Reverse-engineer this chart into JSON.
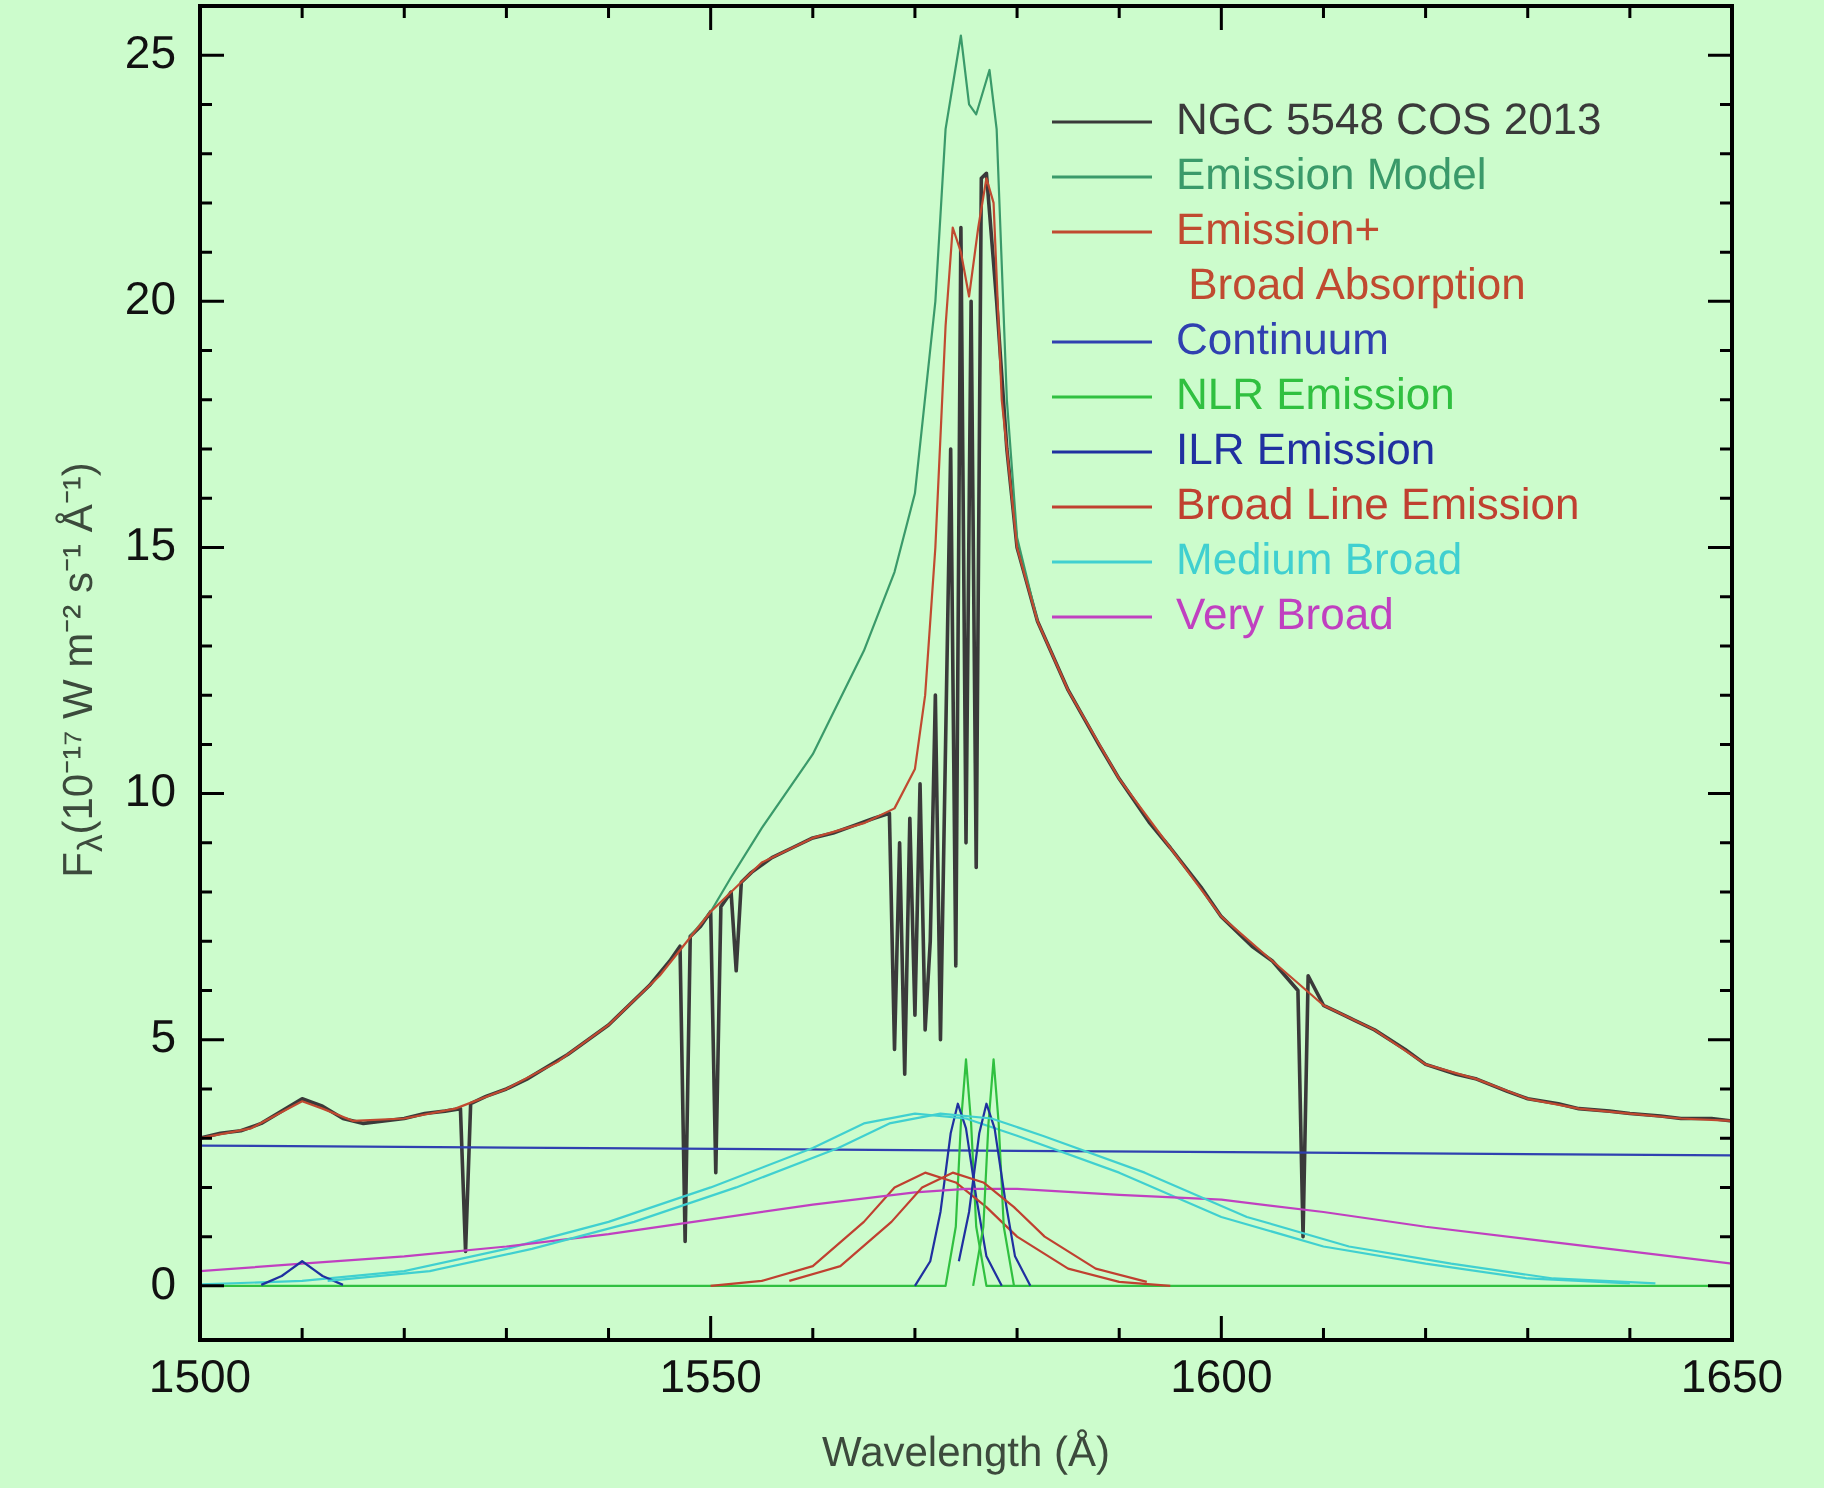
{
  "chart_data": {
    "type": "line",
    "xlabel": "Wavelength (Å)",
    "ylabel": "F$_{λ}$(10⁻¹⁷ W m⁻² s⁻¹ Å⁻¹)",
    "xlim": [
      1500,
      1650
    ],
    "ylim": [
      -1.1,
      26
    ],
    "xticks": [
      1500,
      {
        "value": 1510,
        "label": null
      },
      {
        "value": 1520,
        "label": null
      },
      {
        "value": 1530,
        "label": null
      },
      {
        "value": 1540,
        "label": null
      },
      1550,
      {
        "value": 1560,
        "label": null
      },
      {
        "value": 1570,
        "label": null
      },
      {
        "value": 1580,
        "label": null
      },
      {
        "value": 1590,
        "label": null
      },
      1600,
      {
        "value": 1610,
        "label": null
      },
      {
        "value": 1620,
        "label": null
      },
      {
        "value": 1630,
        "label": null
      },
      {
        "value": 1640,
        "label": null
      },
      1650
    ],
    "yticks": [
      0,
      {
        "value": 1,
        "label": null
      },
      {
        "value": 2,
        "label": null
      },
      {
        "value": 3,
        "label": null
      },
      {
        "value": 4,
        "label": null
      },
      5,
      {
        "value": 6,
        "label": null
      },
      {
        "value": 7,
        "label": null
      },
      {
        "value": 8,
        "label": null
      },
      {
        "value": 9,
        "label": null
      },
      10,
      {
        "value": 11,
        "label": null
      },
      {
        "value": 12,
        "label": null
      },
      {
        "value": 13,
        "label": null
      },
      {
        "value": 14,
        "label": null
      },
      15,
      {
        "value": 16,
        "label": null
      },
      {
        "value": 17,
        "label": null
      },
      {
        "value": 18,
        "label": null
      },
      {
        "value": 19,
        "label": null
      },
      20,
      {
        "value": 21,
        "label": null
      },
      {
        "value": 22,
        "label": null
      },
      {
        "value": 23,
        "label": null
      },
      {
        "value": 24,
        "label": null
      },
      25,
      {
        "value": 26,
        "label": null
      }
    ],
    "grid": false,
    "legend": "top right",
    "marker": "none",
    "line_style": "solid",
    "series": [
      {
        "name": "NGC 5548 COS 2013",
        "color": "#3a3a3a",
        "x": [
          1500,
          1502,
          1504,
          1506,
          1508,
          1510,
          1512,
          1514,
          1516,
          1518,
          1520,
          1522,
          1524,
          1525.5,
          1526,
          1526.5,
          1528,
          1530,
          1532,
          1534,
          1536,
          1538,
          1540,
          1542,
          1544,
          1546,
          1547,
          1547.5,
          1548,
          1549,
          1550,
          1550.5,
          1551,
          1552,
          1552.5,
          1553,
          1554,
          1556,
          1558,
          1560,
          1562,
          1564,
          1566,
          1567.5,
          1568,
          1568.5,
          1569,
          1569.5,
          1570,
          1570.5,
          1571,
          1571.5,
          1572,
          1572.5,
          1573,
          1573.5,
          1574,
          1574.5,
          1575,
          1575.5,
          1576,
          1576.5,
          1577,
          1578,
          1579,
          1580,
          1582,
          1585,
          1588,
          1590,
          1593,
          1595,
          1598,
          1600,
          1603,
          1605,
          1607.5,
          1608,
          1608.5,
          1610,
          1613,
          1615,
          1618,
          1620,
          1623,
          1625,
          1628,
          1630,
          1633,
          1635,
          1638,
          1640,
          1643,
          1645,
          1648,
          1650
        ],
        "values": [
          3.0,
          3.1,
          3.15,
          3.3,
          3.55,
          3.8,
          3.65,
          3.4,
          3.3,
          3.35,
          3.4,
          3.5,
          3.55,
          3.6,
          0.7,
          3.7,
          3.85,
          4.0,
          4.2,
          4.45,
          4.7,
          5.0,
          5.3,
          5.7,
          6.1,
          6.6,
          6.9,
          0.9,
          7.1,
          7.3,
          7.6,
          2.3,
          7.7,
          8.0,
          6.4,
          8.2,
          8.4,
          8.7,
          8.9,
          9.1,
          9.2,
          9.35,
          9.5,
          9.6,
          4.8,
          9.0,
          4.3,
          9.5,
          5.5,
          10.2,
          5.2,
          7.0,
          12.0,
          5.0,
          11.0,
          17.0,
          6.5,
          21.5,
          9.0,
          20.0,
          8.5,
          22.5,
          22.6,
          20.0,
          17.0,
          15.0,
          13.5,
          12.1,
          11.0,
          10.3,
          9.4,
          8.9,
          8.1,
          7.5,
          6.9,
          6.6,
          6.0,
          1.0,
          6.3,
          5.7,
          5.4,
          5.2,
          4.8,
          4.5,
          4.3,
          4.2,
          3.95,
          3.8,
          3.7,
          3.6,
          3.55,
          3.5,
          3.45,
          3.4,
          3.4,
          3.35
        ]
      },
      {
        "name": "Emission Model",
        "color": "#3a9a6a",
        "x": [
          1548,
          1550,
          1552,
          1555,
          1560,
          1565,
          1568,
          1570,
          1572,
          1573,
          1574.5,
          1575.3,
          1576,
          1577.3,
          1578,
          1579,
          1580,
          1582
        ],
        "values": [
          7.1,
          7.6,
          8.3,
          9.3,
          10.8,
          12.9,
          14.5,
          16.1,
          20.0,
          23.5,
          25.4,
          24.0,
          23.8,
          24.7,
          23.5,
          18.0,
          15.2,
          13.5
        ]
      },
      {
        "name": "Emission+\n Broad Absorption",
        "color": "#c04a30",
        "x": [
          1500,
          1505,
          1510,
          1512,
          1515,
          1520,
          1525,
          1530,
          1535,
          1540,
          1545,
          1550,
          1555,
          1560,
          1565,
          1568,
          1570,
          1571,
          1572,
          1573,
          1573.7,
          1574.5,
          1575.3,
          1576.2,
          1577,
          1577.7,
          1578.5,
          1580,
          1582,
          1585,
          1590,
          1595,
          1600,
          1605,
          1610,
          1615,
          1620,
          1625,
          1630,
          1635,
          1640,
          1645,
          1650
        ],
        "values": [
          3.0,
          3.2,
          3.75,
          3.6,
          3.35,
          3.4,
          3.6,
          4.0,
          4.55,
          5.3,
          6.3,
          7.6,
          8.6,
          9.1,
          9.4,
          9.7,
          10.5,
          12.0,
          15.0,
          19.5,
          21.5,
          21.0,
          20.1,
          21.5,
          22.5,
          22.0,
          18.0,
          15.0,
          13.5,
          12.1,
          10.3,
          8.9,
          7.5,
          6.6,
          5.7,
          5.2,
          4.5,
          4.2,
          3.8,
          3.6,
          3.5,
          3.4,
          3.35
        ]
      },
      {
        "name": "Continuum",
        "color": "#3040b0",
        "x": [
          1500,
          1650
        ],
        "values": [
          2.85,
          2.65
        ]
      },
      {
        "name": "NLR Emission",
        "color": "#30c040",
        "x": [
          1500,
          1573,
          1574,
          1574.5,
          1575,
          1575.5,
          1576,
          1577,
          1650
        ],
        "values": [
          0,
          0,
          1.2,
          3.3,
          4.6,
          3.3,
          1.2,
          0,
          0
        ]
      },
      {
        "name": "ILR Emission",
        "color": "#2030a0",
        "x": [
          1570,
          1571.5,
          1572.5,
          1573.5,
          1574.2,
          1575,
          1576,
          1577,
          1578.5
        ],
        "values": [
          0,
          0.5,
          1.5,
          3.1,
          3.7,
          3.2,
          1.8,
          0.6,
          0
        ]
      },
      {
        "name": "Broad Line Emission",
        "color": "#c04030",
        "x": [
          1550,
          1555,
          1560,
          1565,
          1568,
          1571,
          1574,
          1577,
          1580,
          1585,
          1590,
          1595
        ],
        "values": [
          0,
          0.1,
          0.4,
          1.3,
          2.0,
          2.3,
          2.1,
          1.6,
          1.0,
          0.35,
          0.08,
          0
        ]
      },
      {
        "name": "Medium Broad",
        "color": "#40d0d0",
        "x": [
          1500,
          1510,
          1520,
          1530,
          1540,
          1550,
          1560,
          1565,
          1570,
          1575,
          1580,
          1590,
          1600,
          1610,
          1620,
          1630,
          1640
        ],
        "values": [
          0.03,
          0.1,
          0.3,
          0.75,
          1.3,
          2.0,
          2.8,
          3.3,
          3.5,
          3.4,
          3.05,
          2.3,
          1.4,
          0.8,
          0.45,
          0.15,
          0.05
        ]
      },
      {
        "name": "Very Broad",
        "color": "#c040c0",
        "x": [
          1500,
          1510,
          1520,
          1530,
          1540,
          1550,
          1560,
          1570,
          1575,
          1580,
          1590,
          1600,
          1610,
          1620,
          1630,
          1640,
          1650
        ],
        "values": [
          0.3,
          0.45,
          0.6,
          0.8,
          1.05,
          1.35,
          1.65,
          1.9,
          1.97,
          1.97,
          1.85,
          1.75,
          1.5,
          1.2,
          0.95,
          0.7,
          0.45
        ]
      },
      {
        "color": "#30c040",
        "x": [
          1575.7,
          1576.7,
          1577.2,
          1577.7,
          1578.2,
          1578.7,
          1579.7
        ],
        "values": [
          0,
          1.2,
          3.3,
          4.6,
          3.3,
          1.2,
          0
        ]
      },
      {
        "color": "#2030a0",
        "x": [
          1574.3,
          1575.3,
          1576.3,
          1577,
          1577.8,
          1578.8,
          1579.8,
          1581.3
        ],
        "values": [
          0.5,
          1.5,
          3.1,
          3.7,
          3.2,
          1.8,
          0.6,
          0
        ]
      },
      {
        "color": "#2030a0",
        "x": [
          1506,
          1508,
          1510,
          1512,
          1514
        ],
        "values": [
          0.02,
          0.2,
          0.5,
          0.2,
          0.02
        ]
      },
      {
        "color": "#c04030",
        "x": [
          1557.7,
          1562.7,
          1567.7,
          1570.7,
          1573.7,
          1576.7,
          1579.7,
          1582.7,
          1587.7,
          1592.7
        ],
        "values": [
          0.1,
          0.4,
          1.3,
          2.0,
          2.3,
          2.1,
          1.6,
          1.0,
          0.35,
          0.08
        ]
      },
      {
        "color": "#40d0d0",
        "x": [
          1512.5,
          1522.5,
          1532.5,
          1542.5,
          1552.5,
          1562.5,
          1567.5,
          1572.5,
          1577.5,
          1582.5,
          1592.5,
          1602.5,
          1612.5,
          1622.5,
          1632.5,
          1642.5
        ],
        "values": [
          0.1,
          0.3,
          0.75,
          1.3,
          2.0,
          2.8,
          3.3,
          3.5,
          3.4,
          3.05,
          2.3,
          1.4,
          0.8,
          0.45,
          0.15,
          0.05
        ]
      }
    ]
  }
}
